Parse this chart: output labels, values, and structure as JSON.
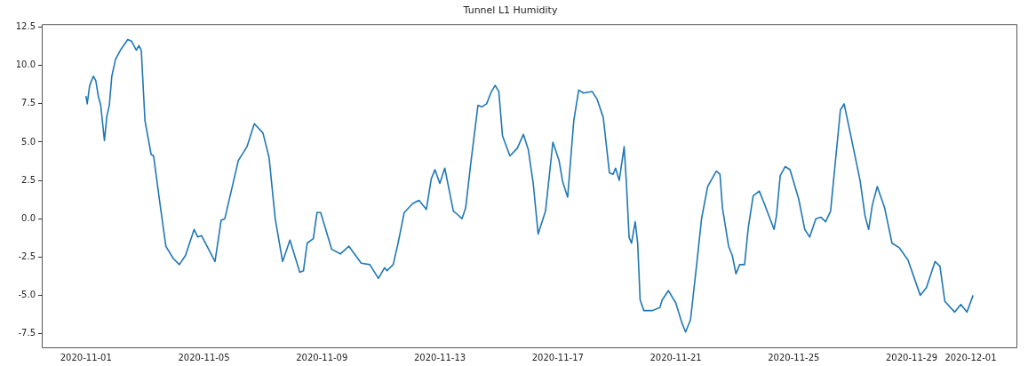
{
  "chart_data": {
    "type": "line",
    "title": "Tunnel L1 Humidity",
    "color": "#1f77b4",
    "marker": "none",
    "x": [
      "2020-11-01T00:00",
      "2020-11-01T01:00",
      "2020-11-01T03:00",
      "2020-11-01T06:00",
      "2020-11-01T08:00",
      "2020-11-01T10:00",
      "2020-11-01T12:00",
      "2020-11-01T15:00",
      "2020-11-01T17:00",
      "2020-11-01T19:00",
      "2020-11-01T21:00",
      "2020-11-02T00:00",
      "2020-11-02T04:00",
      "2020-11-02T10:00",
      "2020-11-02T13:00",
      "2020-11-02T17:00",
      "2020-11-02T19:00",
      "2020-11-02T21:00",
      "2020-11-03T00:00",
      "2020-11-03T05:00",
      "2020-11-03T07:00",
      "2020-11-03T12:00",
      "2020-11-03T17:00",
      "2020-11-03T23:00",
      "2020-11-04T04:00",
      "2020-11-04T09:00",
      "2020-11-04T16:00",
      "2020-11-04T19:00",
      "2020-11-04T22:00",
      "2020-11-05T09:00",
      "2020-11-05T14:00",
      "2020-11-05T17:00",
      "2020-11-06T04:00",
      "2020-11-06T11:00",
      "2020-11-06T17:00",
      "2020-11-07T00:00",
      "2020-11-07T05:00",
      "2020-11-07T10:00",
      "2020-11-07T16:00",
      "2020-11-07T22:00",
      "2020-11-08T06:00",
      "2020-11-08T09:00",
      "2020-11-08T12:00",
      "2020-11-08T17:00",
      "2020-11-08T20:00",
      "2020-11-08T23:00",
      "2020-11-09T08:00",
      "2020-11-09T15:00",
      "2020-11-09T22:00",
      "2020-11-10T08:00",
      "2020-11-10T15:00",
      "2020-11-10T22:00",
      "2020-11-11T03:00",
      "2020-11-11T05:00",
      "2020-11-11T10:00",
      "2020-11-11T14:00",
      "2020-11-11T19:00",
      "2020-11-12T02:00",
      "2020-11-12T07:00",
      "2020-11-12T13:00",
      "2020-11-12T17:00",
      "2020-11-12T20:00",
      "2020-11-13T00:00",
      "2020-11-13T04:00",
      "2020-11-13T11:00",
      "2020-11-13T14:00",
      "2020-11-13T18:00",
      "2020-11-13T21:00",
      "2020-11-14T01:00",
      "2020-11-14T07:00",
      "2020-11-14T10:00",
      "2020-11-14T14:00",
      "2020-11-14T18:00",
      "2020-11-14T21:00",
      "2020-11-15T00:00",
      "2020-11-15T03:00",
      "2020-11-15T09:00",
      "2020-11-15T15:00",
      "2020-11-15T20:00",
      "2020-11-16T00:00",
      "2020-11-16T04:00",
      "2020-11-16T08:00",
      "2020-11-16T14:00",
      "2020-11-16T20:00",
      "2020-11-17T01:00",
      "2020-11-17T04:00",
      "2020-11-17T08:00",
      "2020-11-17T13:00",
      "2020-11-17T17:00",
      "2020-11-17T21:00",
      "2020-11-18T04:00",
      "2020-11-18T08:00",
      "2020-11-18T13:00",
      "2020-11-18T18:00",
      "2020-11-18T21:00",
      "2020-11-18T23:00",
      "2020-11-19T02:00",
      "2020-11-19T06:00",
      "2020-11-19T08:00",
      "2020-11-19T10:00",
      "2020-11-19T12:00",
      "2020-11-19T15:00",
      "2020-11-19T17:00",
      "2020-11-19T19:00",
      "2020-11-19T22:00",
      "2020-11-20T05:00",
      "2020-11-20T11:00",
      "2020-11-20T13:00",
      "2020-11-20T18:00",
      "2020-11-21T00:00",
      "2020-11-21T05:00",
      "2020-11-21T08:00",
      "2020-11-21T12:00",
      "2020-11-21T17:00",
      "2020-11-21T21:00",
      "2020-11-22T02:00",
      "2020-11-22T09:00",
      "2020-11-22T12:00",
      "2020-11-22T14:00",
      "2020-11-22T19:00",
      "2020-11-22T22:00",
      "2020-11-23T01:00",
      "2020-11-23T04:00",
      "2020-11-23T08:00",
      "2020-11-23T11:00",
      "2020-11-23T15:00",
      "2020-11-23T20:00",
      "2020-11-24T00:00",
      "2020-11-24T08:00",
      "2020-11-24T10:00",
      "2020-11-24T13:00",
      "2020-11-24T17:00",
      "2020-11-24T21:00",
      "2020-11-25T04:00",
      "2020-11-25T09:00",
      "2020-11-25T13:00",
      "2020-11-25T18:00",
      "2020-11-25T22:00",
      "2020-11-26T02:00",
      "2020-11-26T06:00",
      "2020-11-26T14:00",
      "2020-11-26T17:00",
      "2020-11-26T22:00",
      "2020-11-27T06:00",
      "2020-11-27T10:00",
      "2020-11-27T13:00",
      "2020-11-27T16:00",
      "2020-11-27T20:00",
      "2020-11-28T02:00",
      "2020-11-28T08:00",
      "2020-11-28T14:00",
      "2020-11-28T21:00",
      "2020-11-29T07:00",
      "2020-11-29T12:00",
      "2020-11-29T19:00",
      "2020-11-29T23:00",
      "2020-11-30T03:00",
      "2020-11-30T11:00",
      "2020-11-30T16:00",
      "2020-11-30T21:00",
      "2020-12-01T02:00"
    ],
    "values": [
      8.0,
      7.5,
      8.7,
      9.3,
      9.0,
      8.0,
      7.4,
      5.1,
      6.7,
      7.4,
      9.3,
      10.4,
      11.0,
      11.7,
      11.6,
      11.0,
      11.3,
      11.0,
      6.4,
      4.2,
      4.1,
      1.1,
      -1.8,
      -2.6,
      -3.0,
      -2.4,
      -0.7,
      -1.2,
      -1.1,
      -2.8,
      -0.1,
      0.0,
      3.8,
      4.7,
      6.2,
      5.6,
      4.0,
      0.0,
      -2.8,
      -1.4,
      -3.5,
      -3.4,
      -1.6,
      -1.3,
      0.4,
      0.4,
      -2.0,
      -2.3,
      -1.8,
      -2.9,
      -3.0,
      -3.9,
      -3.2,
      -3.4,
      -3.0,
      -1.6,
      0.4,
      1.0,
      1.2,
      0.6,
      2.6,
      3.2,
      2.3,
      3.3,
      0.5,
      0.3,
      0.0,
      0.7,
      3.5,
      7.4,
      7.3,
      7.5,
      8.3,
      8.7,
      8.3,
      5.4,
      4.1,
      4.6,
      5.5,
      4.5,
      2.3,
      -1.0,
      0.5,
      5.0,
      3.8,
      2.4,
      1.4,
      6.4,
      8.4,
      8.2,
      8.3,
      7.8,
      6.6,
      3.0,
      2.9,
      3.3,
      2.5,
      4.7,
      2.1,
      -1.2,
      -1.6,
      -0.2,
      -1.6,
      -5.3,
      -6.0,
      -6.0,
      -5.8,
      -5.3,
      -4.7,
      -5.5,
      -6.8,
      -7.4,
      -6.6,
      -3.0,
      0.0,
      2.1,
      3.1,
      2.9,
      0.7,
      -1.8,
      -2.4,
      -3.6,
      -3.0,
      -3.0,
      -0.6,
      1.5,
      1.8,
      1.0,
      -0.7,
      0.2,
      2.8,
      3.4,
      3.2,
      1.3,
      -0.7,
      -1.2,
      0.0,
      0.1,
      -0.2,
      0.5,
      7.1,
      7.5,
      5.6,
      2.5,
      0.2,
      -0.7,
      0.9,
      2.1,
      0.7,
      -1.6,
      -1.9,
      -2.7,
      -5.0,
      -4.5,
      -2.8,
      -3.1,
      -5.4,
      -6.1,
      -5.6,
      -6.1,
      -5.0
    ],
    "xlim": [
      "2020-10-30T12:00",
      "2020-12-02T14:00"
    ],
    "xticks": [
      "2020-11-01",
      "2020-11-05",
      "2020-11-09",
      "2020-11-13",
      "2020-11-17",
      "2020-11-21",
      "2020-11-25",
      "2020-11-29",
      "2020-12-01"
    ],
    "ylim": [
      -8.4,
      12.7
    ],
    "yticks": [
      {
        "value": -7.5,
        "label": "-7.5"
      },
      {
        "value": -5,
        "label": "-5.0"
      },
      {
        "value": -2.5,
        "label": "-2.5"
      },
      {
        "value": 0,
        "label": "0.0"
      },
      {
        "value": 2.5,
        "label": "2.5"
      },
      {
        "value": 5,
        "label": "5.0"
      },
      {
        "value": 7.5,
        "label": "7.5"
      },
      {
        "value": 10,
        "label": "10.0"
      },
      {
        "value": 12.5,
        "label": "12.5"
      }
    ]
  }
}
